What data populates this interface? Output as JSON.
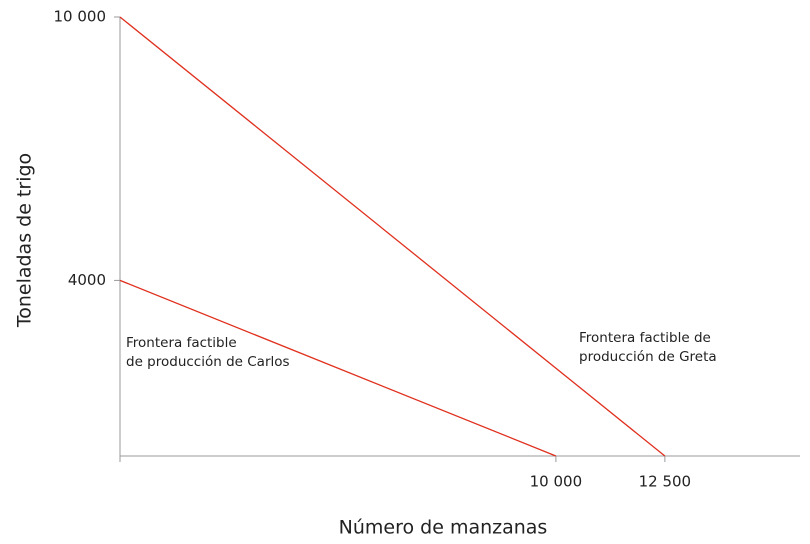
{
  "chart_data": {
    "type": "line",
    "xlabel": "Número de manzanas",
    "ylabel": "Toneladas de trigo",
    "xlim": [
      0,
      15600
    ],
    "ylim": [
      0,
      10000
    ],
    "xticks": [
      {
        "value": 10000,
        "label": "10 000"
      },
      {
        "value": 12500,
        "label": "12 500"
      }
    ],
    "yticks": [
      {
        "value": 4000,
        "label": "4000"
      },
      {
        "value": 10000,
        "label": "10 000"
      }
    ],
    "series": [
      {
        "label_lines": [
          "Frontera factible",
          "de producción de Carlos"
        ],
        "color": "#e0301e",
        "x": [
          0,
          10000
        ],
        "values": [
          4000,
          0
        ]
      },
      {
        "label_lines": [
          "Frontera factible de",
          "producción de Greta"
        ],
        "color": "#e0301e",
        "x": [
          0,
          12500
        ],
        "values": [
          10000,
          0
        ]
      }
    ]
  }
}
